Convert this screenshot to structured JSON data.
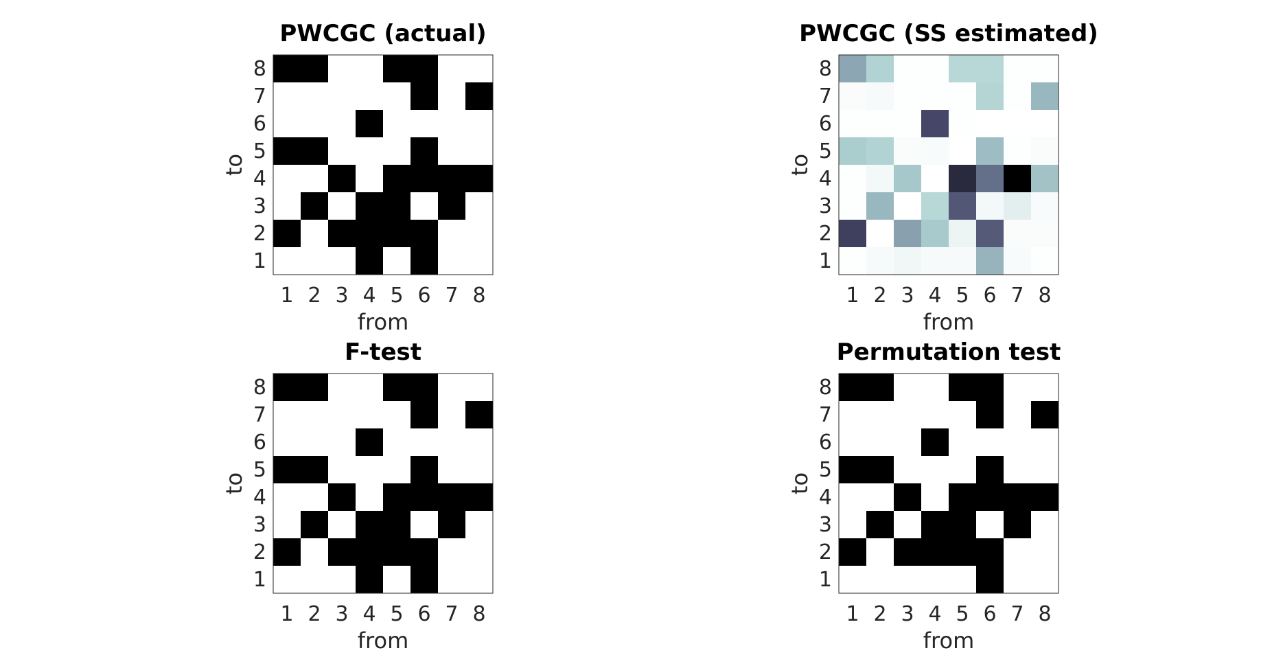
{
  "chart_data": [
    {
      "type": "heatmap",
      "title": "PWCGC (actual)",
      "xlabel": "from",
      "ylabel": "to",
      "x": [
        "1",
        "2",
        "3",
        "4",
        "5",
        "6",
        "7",
        "8"
      ],
      "y": [
        "8",
        "7",
        "6",
        "5",
        "4",
        "3",
        "2",
        "1"
      ],
      "colormap": "binary",
      "values": [
        [
          1,
          1,
          0,
          0,
          1,
          1,
          0,
          0
        ],
        [
          0,
          0,
          0,
          0,
          0,
          1,
          0,
          1
        ],
        [
          0,
          0,
          0,
          1,
          0,
          0,
          0,
          0
        ],
        [
          1,
          1,
          0,
          0,
          0,
          1,
          0,
          0
        ],
        [
          0,
          0,
          1,
          0,
          1,
          1,
          1,
          1
        ],
        [
          0,
          1,
          0,
          1,
          1,
          0,
          1,
          0
        ],
        [
          1,
          0,
          1,
          1,
          1,
          1,
          0,
          0
        ],
        [
          0,
          0,
          0,
          1,
          0,
          1,
          0,
          0
        ]
      ]
    },
    {
      "type": "heatmap",
      "title": "PWCGC (SS estimated)",
      "xlabel": "from",
      "ylabel": "to",
      "x": [
        "1",
        "2",
        "3",
        "4",
        "5",
        "6",
        "7",
        "8"
      ],
      "y": [
        "8",
        "7",
        "6",
        "5",
        "4",
        "3",
        "2",
        "1"
      ],
      "colormap": "bone_reversed",
      "values": [
        [
          0.5,
          0.33,
          0.01,
          0.01,
          0.3,
          0.3,
          0.01,
          0.01
        ],
        [
          0.02,
          0.04,
          0.01,
          0.01,
          0.01,
          0.31,
          0.01,
          0.44
        ],
        [
          0.01,
          0.01,
          0.01,
          0.8,
          0.01,
          0.0,
          0.0,
          0.0
        ],
        [
          0.36,
          0.33,
          0.02,
          0.03,
          0.0,
          0.42,
          0.01,
          0.02
        ],
        [
          0.01,
          0.05,
          0.38,
          0.0,
          0.88,
          0.68,
          1.0,
          0.4
        ],
        [
          0.01,
          0.44,
          0.0,
          0.3,
          0.75,
          0.05,
          0.12,
          0.03
        ],
        [
          0.82,
          0.0,
          0.52,
          0.37,
          0.08,
          0.74,
          0.02,
          0.02
        ],
        [
          0.01,
          0.04,
          0.06,
          0.04,
          0.04,
          0.45,
          0.03,
          0.01
        ]
      ]
    },
    {
      "type": "heatmap",
      "title": "F-test",
      "xlabel": "from",
      "ylabel": "to",
      "x": [
        "1",
        "2",
        "3",
        "4",
        "5",
        "6",
        "7",
        "8"
      ],
      "y": [
        "8",
        "7",
        "6",
        "5",
        "4",
        "3",
        "2",
        "1"
      ],
      "colormap": "binary",
      "values": [
        [
          1,
          1,
          0,
          0,
          1,
          1,
          0,
          0
        ],
        [
          0,
          0,
          0,
          0,
          0,
          1,
          0,
          1
        ],
        [
          0,
          0,
          0,
          1,
          0,
          0,
          0,
          0
        ],
        [
          1,
          1,
          0,
          0,
          0,
          1,
          0,
          0
        ],
        [
          0,
          0,
          1,
          0,
          1,
          1,
          1,
          1
        ],
        [
          0,
          1,
          0,
          1,
          1,
          0,
          1,
          0
        ],
        [
          1,
          0,
          1,
          1,
          1,
          1,
          0,
          0
        ],
        [
          0,
          0,
          0,
          1,
          0,
          1,
          0,
          0
        ]
      ]
    },
    {
      "type": "heatmap",
      "title": "Permutation test",
      "xlabel": "from",
      "ylabel": "to",
      "x": [
        "1",
        "2",
        "3",
        "4",
        "5",
        "6",
        "7",
        "8"
      ],
      "y": [
        "8",
        "7",
        "6",
        "5",
        "4",
        "3",
        "2",
        "1"
      ],
      "colormap": "binary",
      "values": [
        [
          1,
          1,
          0,
          0,
          1,
          1,
          0,
          0
        ],
        [
          0,
          0,
          0,
          0,
          0,
          1,
          0,
          1
        ],
        [
          0,
          0,
          0,
          1,
          0,
          0,
          0,
          0
        ],
        [
          1,
          1,
          0,
          0,
          0,
          1,
          0,
          0
        ],
        [
          0,
          0,
          1,
          0,
          1,
          1,
          1,
          1
        ],
        [
          0,
          1,
          0,
          1,
          1,
          0,
          1,
          0
        ],
        [
          1,
          0,
          1,
          1,
          1,
          1,
          0,
          0
        ],
        [
          0,
          0,
          0,
          0,
          0,
          1,
          0,
          0
        ]
      ]
    }
  ]
}
